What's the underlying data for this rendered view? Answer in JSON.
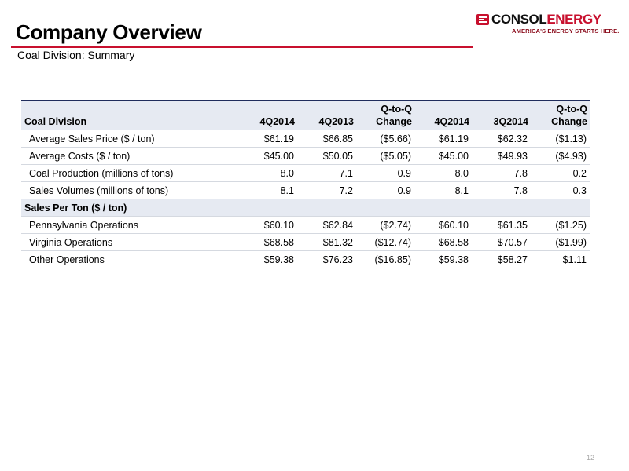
{
  "header": {
    "title": "Company Overview",
    "subtitle": "Coal Division: Summary",
    "accent_color": "#c8102e"
  },
  "logo": {
    "name_part1": "CONSOL",
    "name_part2": "ENERGY",
    "tagline": "AMERICA'S ENERGY STARTS HERE.",
    "colors": {
      "dark": "#111111",
      "red": "#c8102e"
    }
  },
  "table": {
    "header_fill": "#e6eaf2",
    "rule_color": "#1f2c5c",
    "columns": [
      {
        "line1": "",
        "line2": "Coal Division"
      },
      {
        "line1": "",
        "line2": "4Q2014"
      },
      {
        "line1": "",
        "line2": "4Q2013"
      },
      {
        "line1": "Q-to-Q",
        "line2": "Change"
      },
      {
        "line1": "",
        "line2": "4Q2014"
      },
      {
        "line1": "",
        "line2": "3Q2014"
      },
      {
        "line1": "Q-to-Q",
        "line2": "Change"
      }
    ],
    "rows": [
      {
        "label": "Average Sales Price ($ / ton)",
        "values": [
          "$61.19",
          "$66.85",
          "($5.66)",
          "$61.19",
          "$62.32",
          "($1.13)"
        ]
      },
      {
        "label": "Average Costs ($ / ton)",
        "values": [
          "$45.00",
          "$50.05",
          "($5.05)",
          "$45.00",
          "$49.93",
          "($4.93)"
        ]
      },
      {
        "label": "Coal Production (millions of tons)",
        "values": [
          "8.0",
          "7.1",
          "0.9",
          "8.0",
          "7.8",
          "0.2"
        ]
      },
      {
        "label": "Sales Volumes (millions of tons)",
        "values": [
          "8.1",
          "7.2",
          "0.9",
          "8.1",
          "7.8",
          "0.3"
        ]
      }
    ],
    "section": {
      "title": "Sales Per Ton ($ / ton)",
      "rows": [
        {
          "label": "Pennsylvania Operations",
          "values": [
            "$60.10",
            "$62.84",
            "($2.74)",
            "$60.10",
            "$61.35",
            "($1.25)"
          ]
        },
        {
          "label": "Virginia Operations",
          "values": [
            "$68.58",
            "$81.32",
            "($12.74)",
            "$68.58",
            "$70.57",
            "($1.99)"
          ]
        },
        {
          "label": "Other Operations",
          "values": [
            "$59.38",
            "$76.23",
            "($16.85)",
            "$59.38",
            "$58.27",
            "$1.11"
          ]
        }
      ]
    }
  },
  "footer": {
    "page_number": "12"
  }
}
